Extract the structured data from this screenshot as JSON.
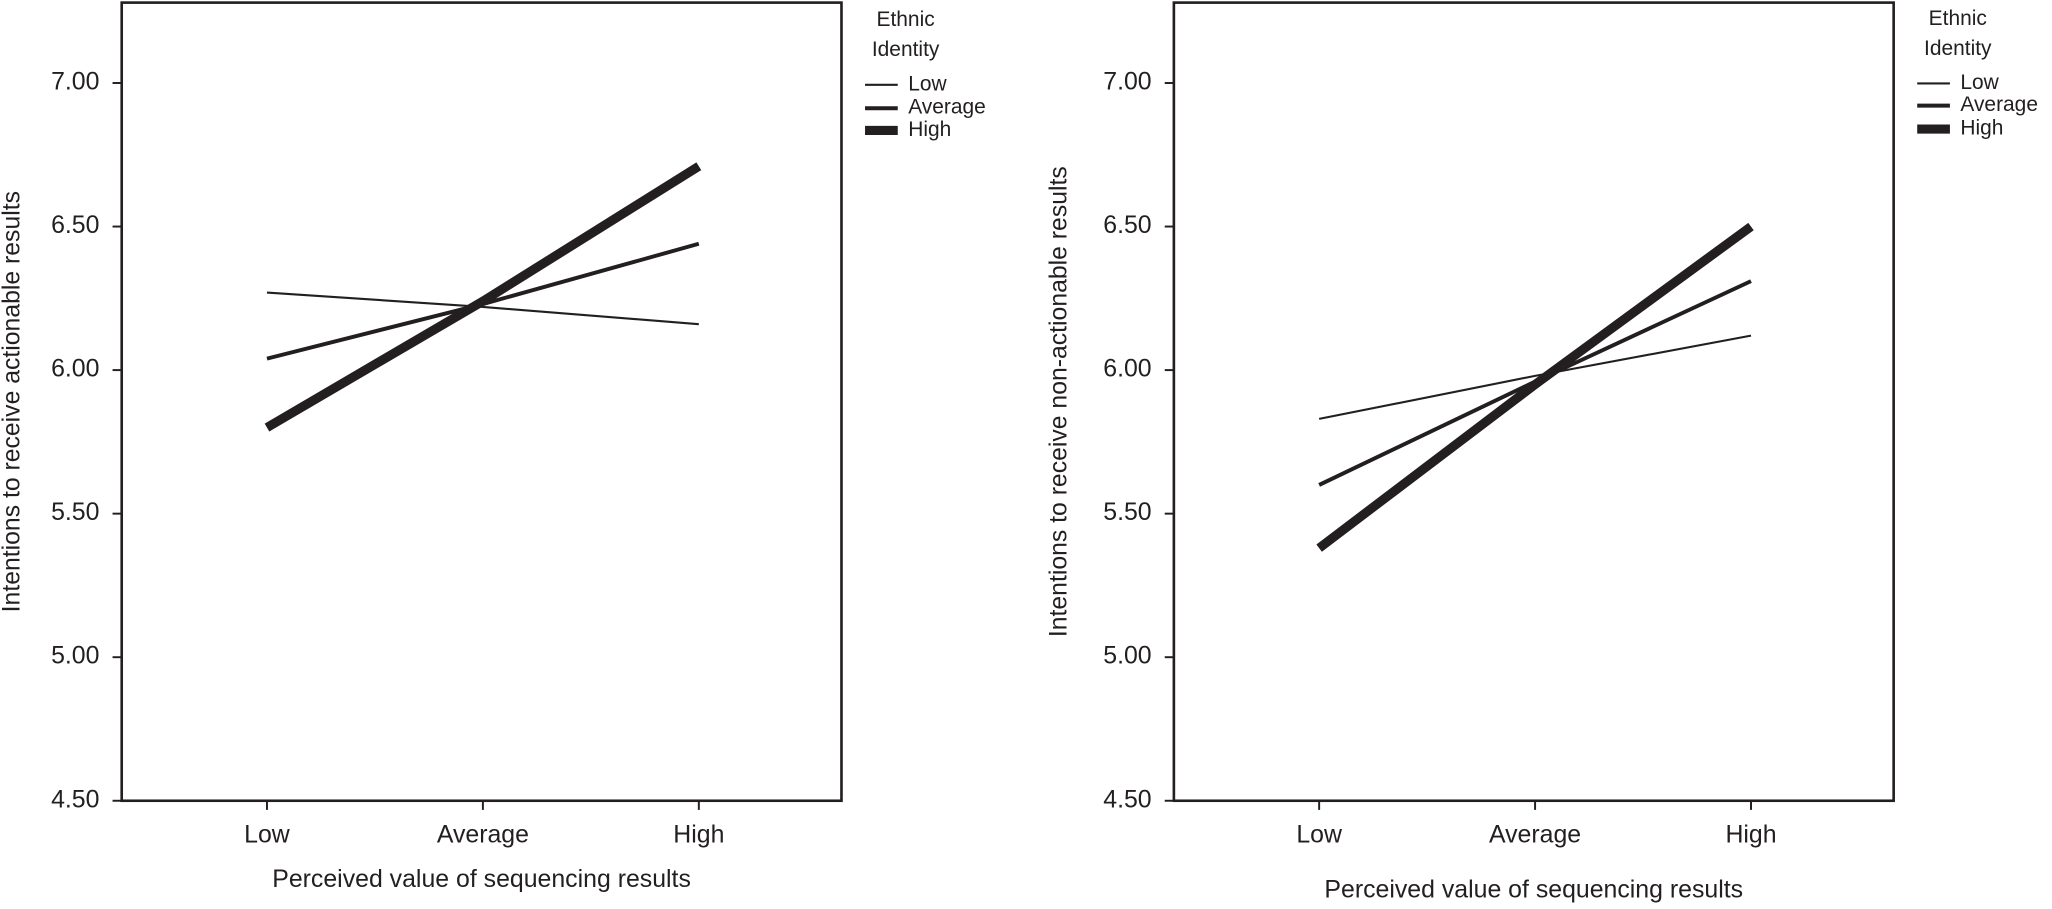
{
  "chart_data": [
    {
      "type": "line",
      "y_label": "Intentions to receive actionable results",
      "x_label": "Perceived value of sequencing results",
      "categories": [
        "Low",
        "Average",
        "High"
      ],
      "legend_title": "Ethnic Identity",
      "series": [
        {
          "name": "Low",
          "color": "#231f20",
          "width": 1.6,
          "values": [
            6.27,
            6.22,
            6.16
          ]
        },
        {
          "name": "Average",
          "color": "#231f20",
          "width": 3,
          "values": [
            6.04,
            6.23,
            6.44
          ]
        },
        {
          "name": "High",
          "color": "#231f20",
          "width": 7,
          "values": [
            5.8,
            6.24,
            6.71
          ]
        }
      ],
      "ylim": [
        4.5,
        7.28
      ],
      "yticks": [
        {
          "value": 4.5,
          "label": "4.50"
        },
        {
          "value": 5,
          "label": "5.00"
        },
        {
          "value": 5.5,
          "label": "5.50"
        },
        {
          "value": 6,
          "label": "6.00"
        },
        {
          "value": 6.5,
          "label": "6.50"
        },
        {
          "value": 7,
          "label": "7.00"
        }
      ]
    },
    {
      "type": "line",
      "y_label": "Intentions to receive non-actionable results",
      "x_label": "Perceived value of sequencing results",
      "categories": [
        "Low",
        "Average",
        "High"
      ],
      "legend_title": "Ethnic Identity",
      "series": [
        {
          "name": "Low",
          "color": "#231f20",
          "width": 1.6,
          "values": [
            5.83,
            5.98,
            6.12
          ]
        },
        {
          "name": "Average",
          "color": "#231f20",
          "width": 3,
          "values": [
            5.6,
            5.96,
            6.31
          ]
        },
        {
          "name": "High",
          "color": "#231f20",
          "width": 7,
          "values": [
            5.38,
            5.95,
            6.5
          ]
        }
      ],
      "ylim": [
        4.5,
        7.28
      ],
      "yticks": [
        {
          "value": 4.5,
          "label": "4.50"
        },
        {
          "value": 5,
          "label": "5.00"
        },
        {
          "value": 5.5,
          "label": "5.50"
        },
        {
          "value": 6,
          "label": "6.00"
        },
        {
          "value": 6.5,
          "label": "6.50"
        },
        {
          "value": 7,
          "label": "7.00"
        }
      ]
    }
  ]
}
